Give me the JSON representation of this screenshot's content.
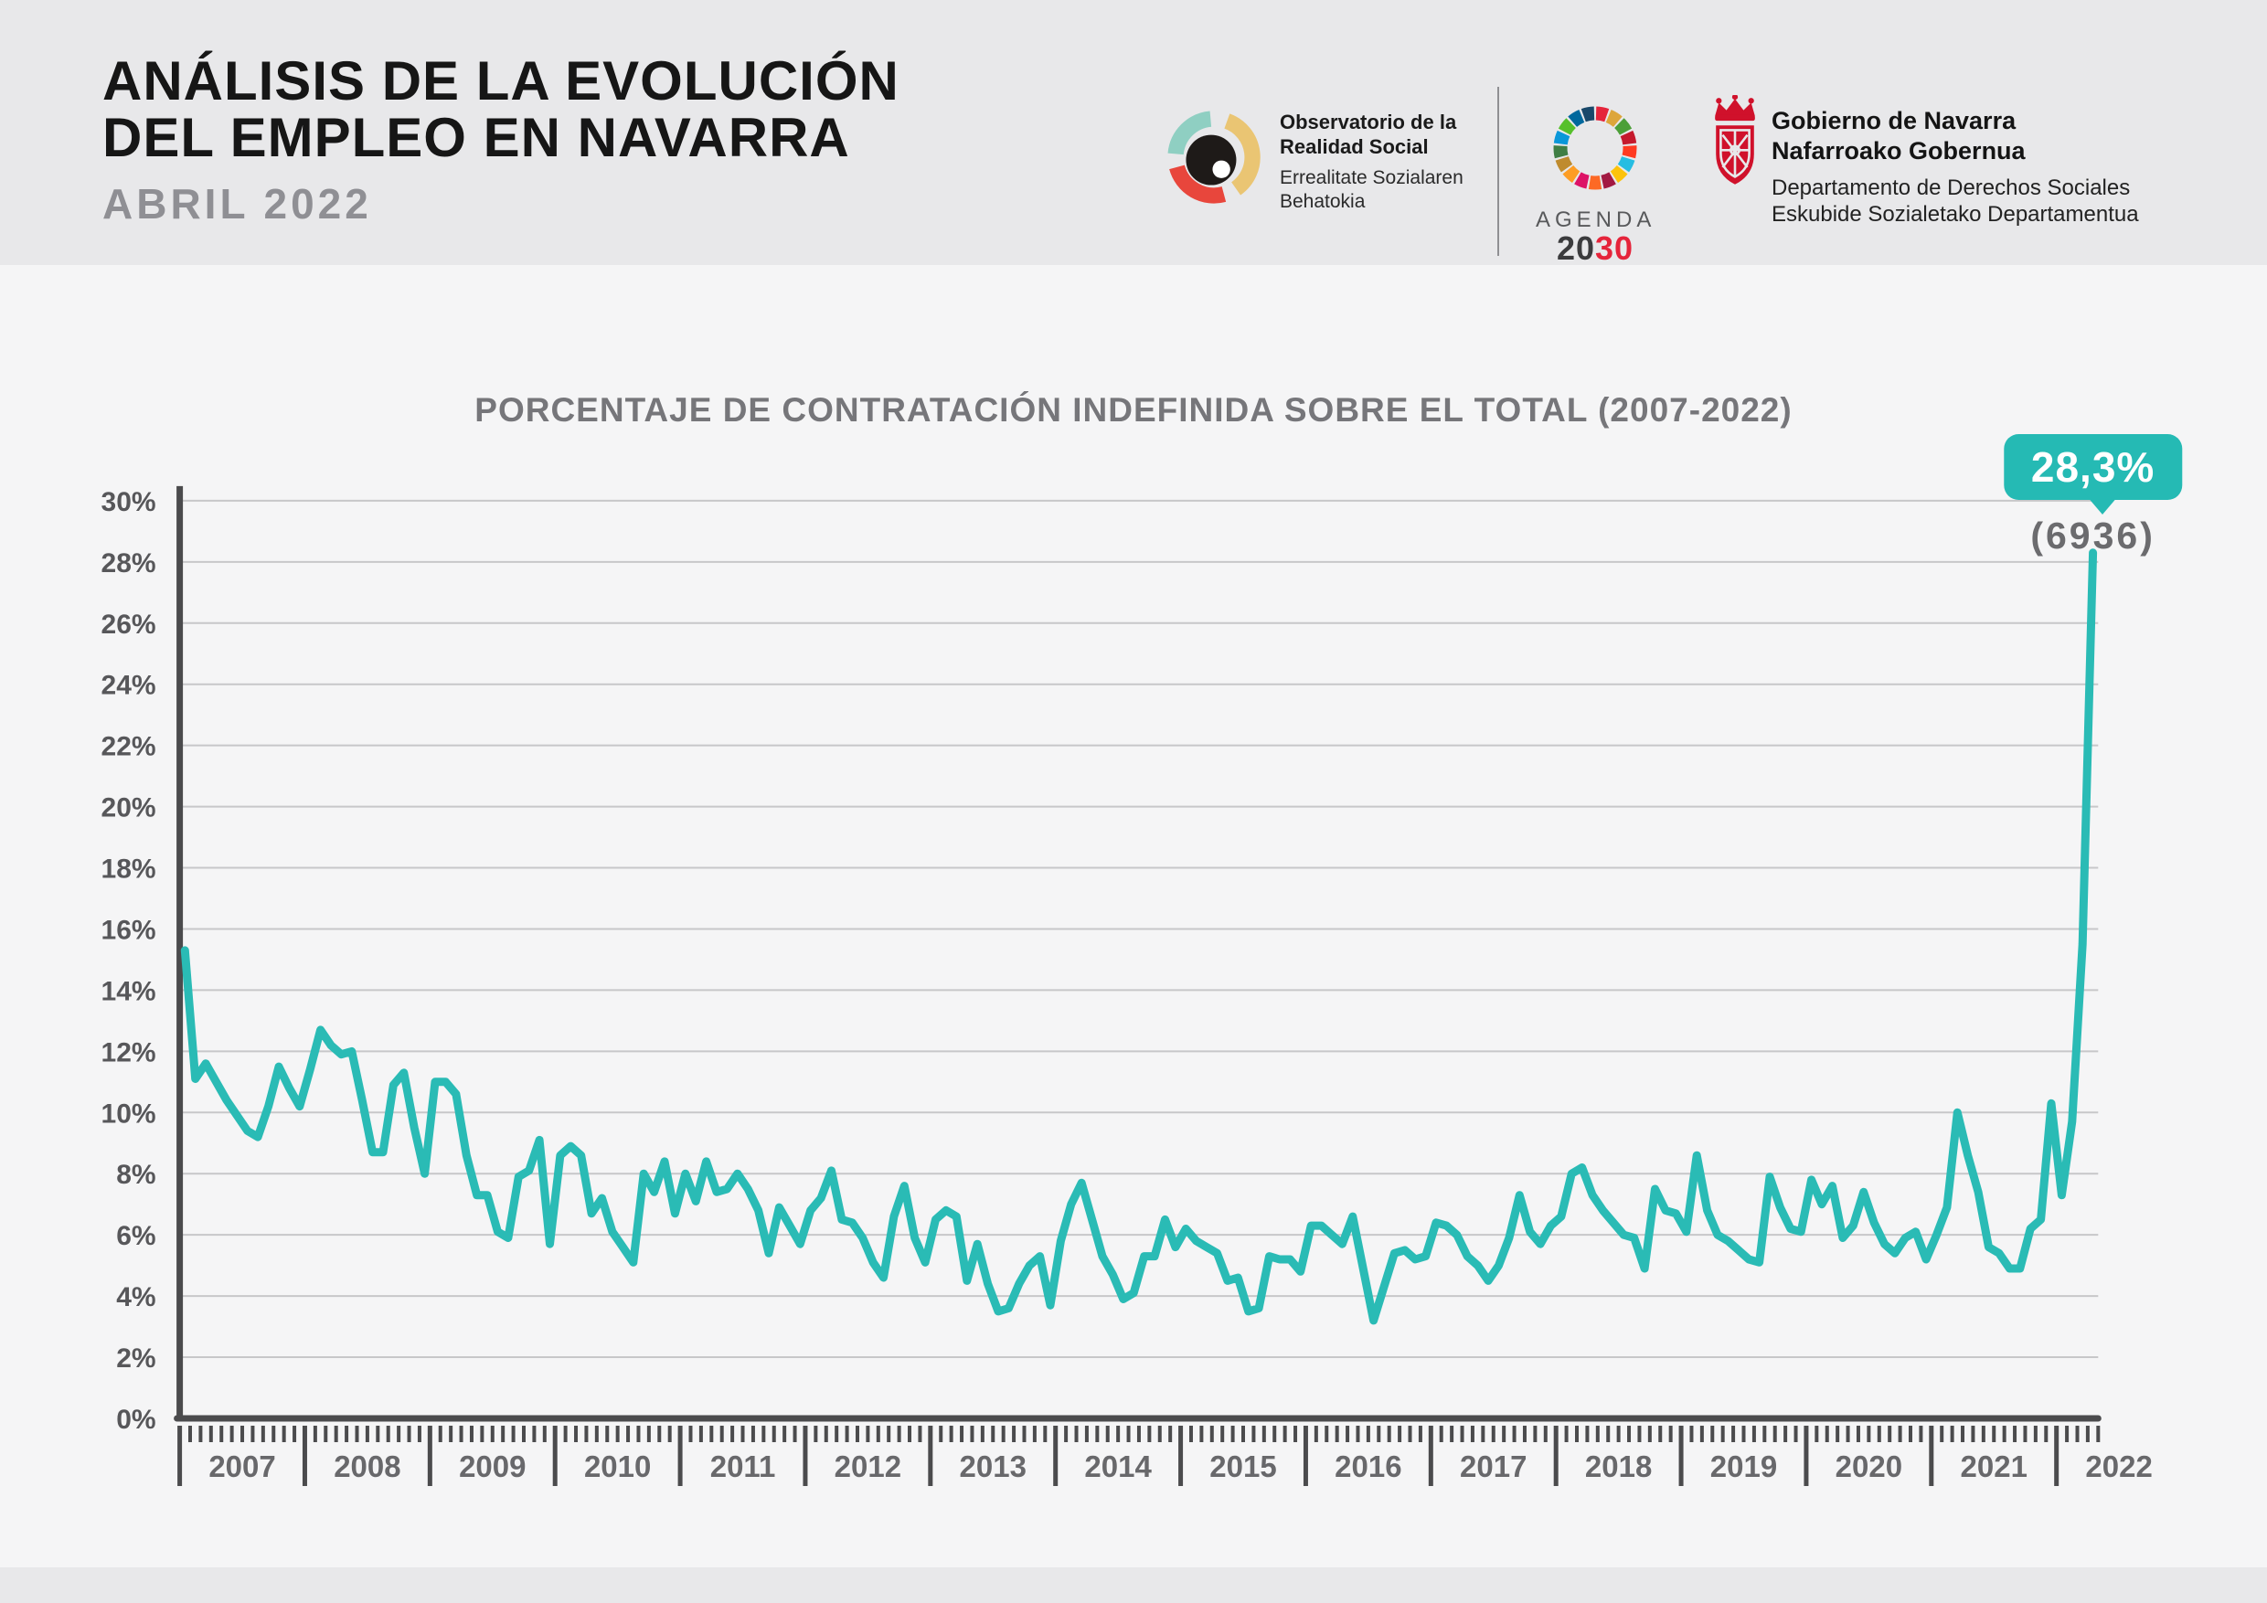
{
  "header": {
    "title_line1": "ANÁLISIS DE LA EVOLUCIÓN",
    "title_line2_normal": "DEL ",
    "title_line2_bold": "EMPLEO EN NAVARRA",
    "subtitle": "ABRIL 2022",
    "observatorio": {
      "name_line1": "Observatorio de la",
      "name_line2": "Realidad Social",
      "name_eu_line1": "Errealitate Sozialaren",
      "name_eu_line2": "Behatokia"
    },
    "agenda2030": {
      "word": "AGENDA",
      "year_dark": "20",
      "year_red": "30"
    },
    "gobierno": {
      "line1": "Gobierno de Navarra",
      "line2": "Nafarroako Gobernua",
      "line3": "Departamento de Derechos Sociales",
      "line4": "Eskubide Sozialetako Departamentua"
    }
  },
  "chart": {
    "title": "PORCENTAJE DE CONTRATACIÓN INDEFINIDA SOBRE EL TOTAL (2007-2022)",
    "callout": {
      "value": "28,3%",
      "subvalue": "(6936)"
    }
  },
  "chart_data": {
    "type": "line",
    "title": "PORCENTAJE DE CONTRATACIÓN INDEFINIDA SOBRE EL TOTAL (2007-2022)",
    "unit": "%",
    "first_month": "2007-01",
    "last_month": "2022-04",
    "points_per_year": 12,
    "x_years": [
      "2007",
      "2008",
      "2009",
      "2010",
      "2011",
      "2012",
      "2013",
      "2014",
      "2015",
      "2016",
      "2017",
      "2018",
      "2019",
      "2020",
      "2021",
      "2022"
    ],
    "values": [
      15.3,
      11.1,
      11.6,
      11.0,
      10.4,
      9.9,
      9.4,
      9.2,
      10.2,
      11.5,
      10.8,
      10.2,
      11.4,
      12.7,
      12.2,
      11.9,
      12.0,
      10.4,
      8.7,
      8.7,
      10.9,
      11.3,
      9.5,
      8.0,
      11.0,
      11.0,
      10.6,
      8.6,
      7.3,
      7.3,
      6.1,
      5.9,
      7.9,
      8.1,
      9.1,
      5.7,
      8.6,
      8.9,
      8.6,
      6.7,
      7.2,
      6.1,
      5.6,
      5.1,
      8.0,
      7.4,
      8.4,
      6.7,
      8.0,
      7.1,
      8.4,
      7.4,
      7.5,
      8.0,
      7.5,
      6.8,
      5.4,
      6.9,
      6.3,
      5.7,
      6.8,
      7.2,
      8.1,
      6.5,
      6.4,
      5.9,
      5.1,
      4.6,
      6.6,
      7.6,
      5.9,
      5.1,
      6.5,
      6.8,
      6.6,
      4.5,
      5.7,
      4.4,
      3.5,
      3.6,
      4.4,
      5.0,
      5.3,
      3.7,
      5.8,
      7.0,
      7.7,
      6.5,
      5.3,
      4.7,
      3.9,
      4.1,
      5.3,
      5.3,
      6.5,
      5.6,
      6.2,
      5.8,
      5.6,
      5.4,
      4.5,
      4.6,
      3.5,
      3.6,
      5.3,
      5.2,
      5.2,
      4.8,
      6.3,
      6.3,
      6.0,
      5.7,
      6.6,
      4.9,
      3.2,
      4.3,
      5.4,
      5.5,
      5.2,
      5.3,
      6.4,
      6.3,
      6.0,
      5.3,
      5.0,
      4.5,
      5.0,
      5.9,
      7.3,
      6.1,
      5.7,
      6.3,
      6.6,
      8.0,
      8.2,
      7.3,
      6.8,
      6.4,
      6.0,
      5.9,
      4.9,
      7.5,
      6.8,
      6.7,
      6.1,
      8.6,
      6.8,
      6.0,
      5.8,
      5.5,
      5.2,
      5.1,
      7.9,
      6.9,
      6.2,
      6.1,
      7.8,
      7.0,
      7.6,
      5.9,
      6.3,
      7.4,
      6.4,
      5.7,
      5.4,
      5.9,
      6.1,
      5.2,
      6.0,
      6.9,
      10.0,
      8.6,
      7.4,
      5.6,
      5.4,
      4.9,
      4.9,
      6.2,
      6.5,
      10.3,
      7.3,
      9.7,
      15.5,
      28.3
    ],
    "last_value": 28.3,
    "last_point_label": "28,3%",
    "last_point_sublabel": "(6936)",
    "ylim": [
      0,
      30
    ],
    "ytick_step": 2,
    "ytick_labels": [
      "0%",
      "2%",
      "4%",
      "6%",
      "8%",
      "10%",
      "12%",
      "14%",
      "16%",
      "18%",
      "20%",
      "22%",
      "24%",
      "26%",
      "28%",
      "30%"
    ],
    "grid": "horizontal",
    "legend": "none",
    "line_color": "#2abbb5"
  },
  "colors": {
    "header_bg": "#e8e8ea",
    "page_bg": "#f5f5f6",
    "accent_teal": "#2abbb5",
    "badge_teal": "#25bab4",
    "axis": "#4b4b4d",
    "grid": "#c7c7c9",
    "title_gray": "#76767a",
    "navarra_red": "#d0112b",
    "sdg_red": "#e5243b"
  },
  "icons": {
    "observatorio_eye": {
      "mint": "#8fcfc2",
      "yellow": "#eac573",
      "red": "#e8463c",
      "eye": "#1e1a18"
    },
    "sdg_wheel_colors": [
      "#e5243b",
      "#dda63a",
      "#4c9f38",
      "#c5192d",
      "#ff3a21",
      "#26bde2",
      "#fcc30b",
      "#a21942",
      "#fd6925",
      "#dd1367",
      "#fd9d24",
      "#bf8b2e",
      "#3f7e44",
      "#0a97d9",
      "#56c02b",
      "#00689d",
      "#19486a"
    ]
  }
}
